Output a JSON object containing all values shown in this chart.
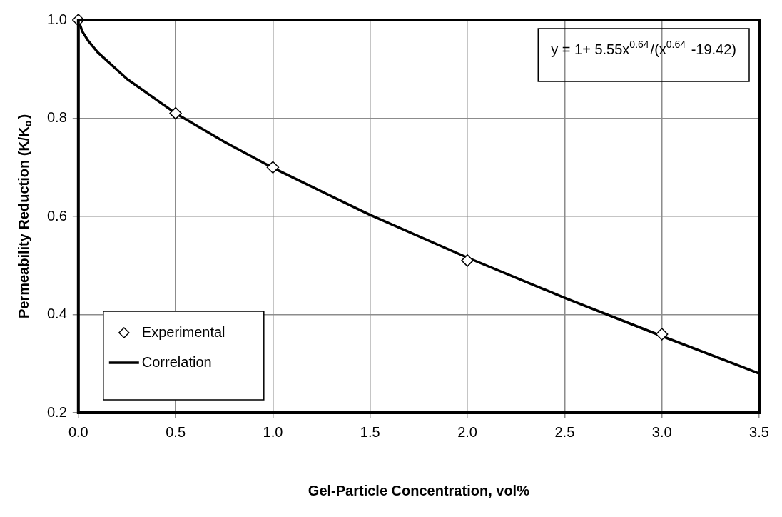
{
  "chart_data": {
    "type": "scatter",
    "xlabel": "Gel-Particle Concentration, vol%",
    "ylabel": "Permeability Reduction (K/K$_{o}$)",
    "annotations": [
      "y = 1+ 5.55x$^{0.64}$/(x$^{0.64}$ -19.42)"
    ],
    "xlim": [
      0,
      3.5
    ],
    "ylim": [
      0.2,
      1.0
    ],
    "xticks": [
      {
        "value": 0,
        "label": "0.0"
      },
      0.5,
      {
        "value": 1,
        "label": "1.0"
      },
      1.5,
      {
        "value": 2,
        "label": "2.0"
      },
      2.5,
      {
        "value": 3,
        "label": "3.0"
      },
      3.5
    ],
    "yticks": [
      0.2,
      0.4,
      0.6,
      0.8,
      {
        "value": 1,
        "label": "1.0"
      }
    ],
    "grid": true,
    "legend": "bottom left",
    "series": [
      {
        "name": "Experimental",
        "type": "scatter",
        "marker": "diamond",
        "color": "#000000",
        "x": [
          0,
          0.5,
          1,
          2,
          3
        ],
        "values": [
          1.0,
          0.81,
          0.7,
          0.51,
          0.36
        ]
      },
      {
        "name": "Correlation",
        "type": "line",
        "marker": "none",
        "line_style": "solid",
        "color": "#000000",
        "x": [
          0,
          0.02,
          0.05,
          0.1,
          0.25,
          0.5,
          0.75,
          1,
          1.5,
          2,
          2.5,
          3,
          3.5
        ],
        "values": [
          1.0,
          0.977,
          0.958,
          0.934,
          0.88,
          0.81,
          0.752,
          0.699,
          0.603,
          0.516,
          0.434,
          0.356,
          0.28
        ]
      }
    ]
  }
}
